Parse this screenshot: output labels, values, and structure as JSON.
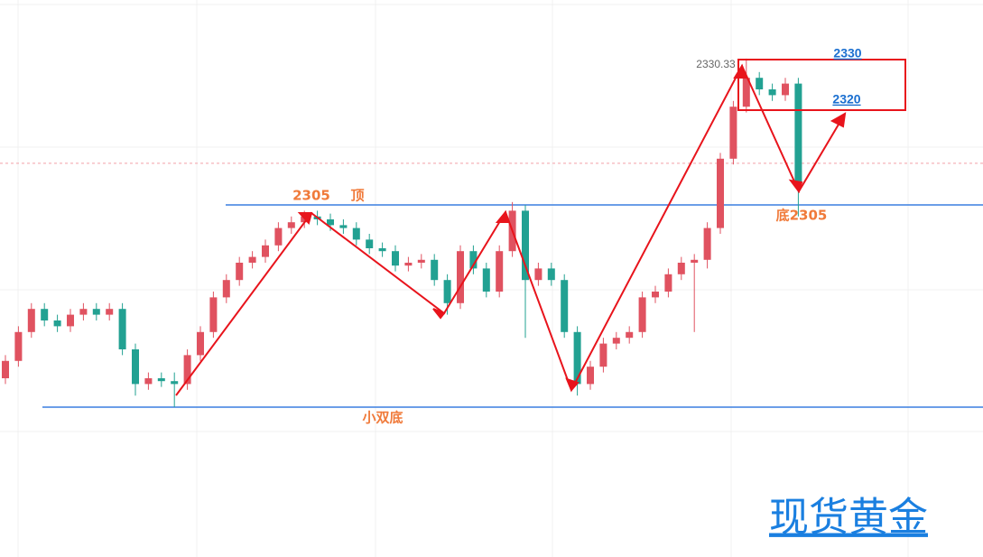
{
  "chart_data": {
    "type": "candlestick",
    "open": [
      2275,
      2278,
      2283,
      2287,
      2285,
      2284,
      2286,
      2287,
      2286,
      2287,
      2280,
      2274,
      2275,
      2274.5,
      2274,
      2279,
      2283,
      2289,
      2292,
      2295,
      2296,
      2298,
      2301,
      2302,
      2303,
      2302.5,
      2301.5,
      2301,
      2299,
      2297.5,
      2297,
      2294.5,
      2295,
      2295.5,
      2292,
      2288,
      2297,
      2294,
      2290,
      2297,
      2304,
      2292,
      2294,
      2292,
      2283,
      2274,
      2277,
      2281,
      2282,
      2283,
      2289,
      2290,
      2293,
      2295,
      2295.5,
      2301,
      2313,
      2322,
      2327,
      2325,
      2324,
      2326
    ],
    "high": [
      2279,
      2284,
      2288,
      2288,
      2286,
      2287,
      2288,
      2288,
      2288,
      2288,
      2281,
      2276,
      2276,
      2276,
      2280,
      2284,
      2290,
      2293,
      2296,
      2297,
      2299,
      2302,
      2303,
      2304,
      2304,
      2303.5,
      2302.5,
      2302,
      2300,
      2298.5,
      2298,
      2296,
      2296.5,
      2296.5,
      2293,
      2298,
      2298,
      2295,
      2298,
      2305.5,
      2305,
      2295,
      2295,
      2293,
      2284,
      2278,
      2282,
      2283,
      2284,
      2290,
      2291,
      2294,
      2296,
      2296.5,
      2302,
      2314,
      2323,
      2330.33,
      2328,
      2326,
      2327,
      2327
    ],
    "low": [
      2274,
      2277,
      2282,
      2284,
      2283,
      2283,
      2285,
      2285,
      2285,
      2279,
      2272,
      2273,
      2273.5,
      2270,
      2273,
      2278,
      2282,
      2288,
      2291,
      2294,
      2295,
      2297,
      2300,
      2301,
      2301.5,
      2300.5,
      2300,
      2298,
      2296.5,
      2296,
      2293.5,
      2293.5,
      2294,
      2291,
      2286,
      2287,
      2293,
      2289,
      2289,
      2296,
      2282,
      2291,
      2291,
      2282,
      2272,
      2273,
      2276,
      2280,
      2281,
      2282,
      2288,
      2289,
      2292,
      2283,
      2294,
      2300,
      2312,
      2321,
      2324,
      2323,
      2323,
      2303
    ],
    "close": [
      2278,
      2283,
      2287,
      2285,
      2284,
      2286,
      2287,
      2286,
      2287,
      2280,
      2274,
      2275,
      2274.5,
      2274,
      2279,
      2283,
      2289,
      2292,
      2295,
      2296,
      2298,
      2301,
      2302,
      2303,
      2302.5,
      2301.5,
      2301,
      2299,
      2297.5,
      2297,
      2294.5,
      2295,
      2295.5,
      2292,
      2288,
      2297,
      2294,
      2290,
      2297,
      2304,
      2292,
      2294,
      2292,
      2283,
      2274,
      2277,
      2281,
      2282,
      2283,
      2289,
      2290,
      2293,
      2295,
      2295.5,
      2301,
      2313,
      2322,
      2327,
      2325,
      2324,
      2326,
      2309
    ],
    "up_color": "#e05260",
    "down_color": "#22a192",
    "ylim": [
      2244.06,
      2340.47
    ],
    "levels": [
      2305,
      2270
    ],
    "level_color": "#3a7fe0",
    "price_line": 2312.2,
    "high_label": "2330.33",
    "annotations": {
      "top_price": "2305",
      "top": "顶",
      "bottom": "底2305",
      "double_bottom": "小双底",
      "box_top": "2330",
      "box_bottom": "2320"
    },
    "watermark": "现货黄金"
  }
}
